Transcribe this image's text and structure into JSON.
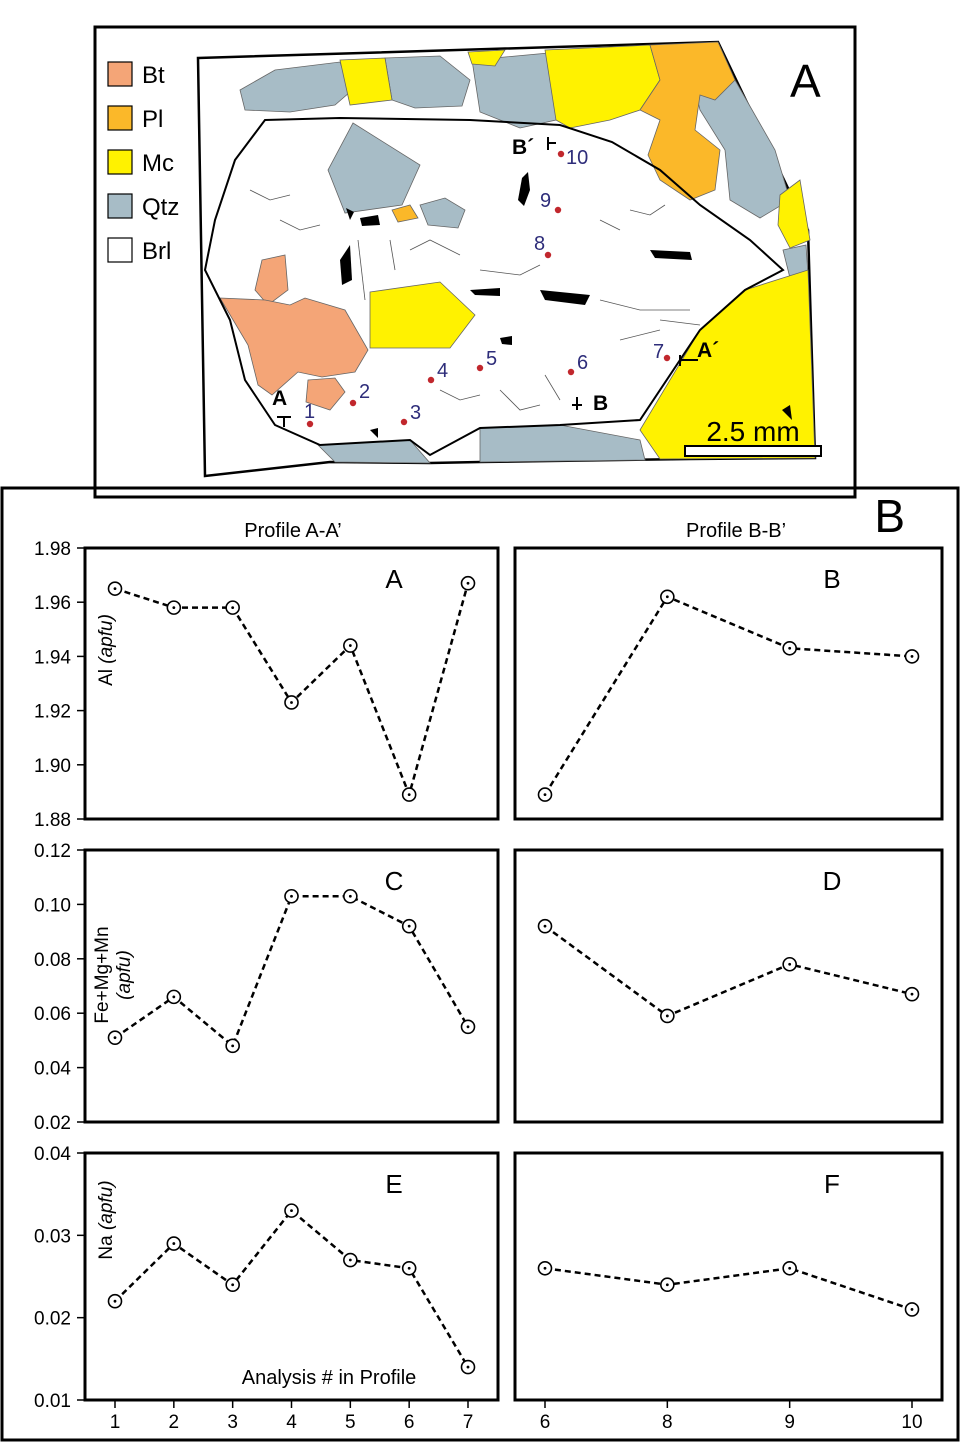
{
  "map": {
    "panel_letter": "A",
    "legend": [
      {
        "label": "Bt",
        "color": "#f4a577"
      },
      {
        "label": "Pl",
        "color": "#fbb829"
      },
      {
        "label": "Mc",
        "color": "#fff200"
      },
      {
        "label": "Qtz",
        "color": "#a7bcc6"
      },
      {
        "label": "Brl",
        "color": "#ffffff"
      }
    ],
    "scale_bar_label": "2.5 mm",
    "profile_labels": {
      "a": "A",
      "a_prime": "A´",
      "b": "B",
      "b_prime": "B´"
    },
    "analysis_points": [
      "1",
      "2",
      "3",
      "4",
      "5",
      "6",
      "7",
      "8",
      "9",
      "10"
    ],
    "point_color": "#c1272d",
    "number_color": "#2e2d7a"
  },
  "charts_section": {
    "panel_letter": "B",
    "profile_titles": [
      "Profile A-A’",
      "Profile B-B’"
    ],
    "x_label": "Analysis # in Profile"
  },
  "chart_data": [
    {
      "type": "line",
      "letter": "A",
      "profile": "A-A’",
      "ylabel_main": "Al ",
      "ylabel_unit": "(apfu)",
      "categories": [
        "1",
        "2",
        "3",
        "4",
        "5",
        "6",
        "7"
      ],
      "values": [
        1.965,
        1.958,
        1.958,
        1.923,
        1.944,
        1.889,
        1.967
      ],
      "ylim": [
        1.88,
        1.98
      ],
      "yticks": [
        "1.88",
        "1.90",
        "1.92",
        "1.94",
        "1.96",
        "1.98"
      ]
    },
    {
      "type": "line",
      "letter": "B",
      "profile": "B-B’",
      "categories": [
        "6",
        "8",
        "9",
        "10"
      ],
      "values": [
        1.889,
        1.962,
        1.943,
        1.94
      ],
      "ylim": [
        1.88,
        1.98
      ]
    },
    {
      "type": "line",
      "letter": "C",
      "profile": "A-A’",
      "ylabel_main": "Fe+Mg+Mn",
      "ylabel_unit": "(apfu)",
      "categories": [
        "1",
        "2",
        "3",
        "4",
        "5",
        "6",
        "7"
      ],
      "values": [
        0.051,
        0.066,
        0.048,
        0.103,
        0.103,
        0.092,
        0.055
      ],
      "ylim": [
        0.02,
        0.12
      ],
      "yticks": [
        "0.02",
        "0.04",
        "0.06",
        "0.08",
        "0.10",
        "0.12"
      ]
    },
    {
      "type": "line",
      "letter": "D",
      "profile": "B-B’",
      "categories": [
        "6",
        "8",
        "9",
        "10"
      ],
      "values": [
        0.092,
        0.059,
        0.078,
        0.067
      ],
      "ylim": [
        0.02,
        0.12
      ]
    },
    {
      "type": "line",
      "letter": "E",
      "profile": "A-A’",
      "ylabel_main": "Na ",
      "ylabel_unit": "(apfu)",
      "categories": [
        "1",
        "2",
        "3",
        "4",
        "5",
        "6",
        "7"
      ],
      "values": [
        0.022,
        0.029,
        0.024,
        0.033,
        0.027,
        0.026,
        0.014
      ],
      "ylim": [
        0.01,
        0.04
      ],
      "yticks": [
        "0.01",
        "0.02",
        "0.03",
        "0.04"
      ]
    },
    {
      "type": "line",
      "letter": "F",
      "profile": "B-B’",
      "categories": [
        "6",
        "8",
        "9",
        "10"
      ],
      "values": [
        0.026,
        0.024,
        0.026,
        0.021
      ],
      "ylim": [
        0.01,
        0.04
      ]
    }
  ]
}
